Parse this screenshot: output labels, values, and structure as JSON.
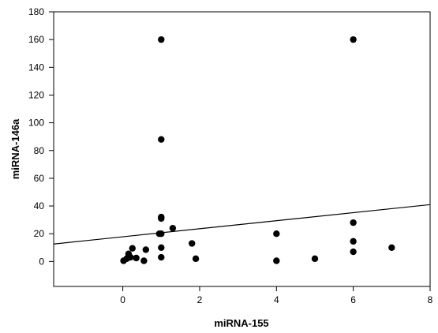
{
  "chart_data": {
    "type": "scatter",
    "title": "",
    "xlabel": "miRNA-155",
    "ylabel": "miRNA-146a",
    "xlim": [
      -1.8,
      8
    ],
    "ylim": [
      -18,
      180
    ],
    "xticks": [
      0,
      2,
      4,
      6,
      8
    ],
    "yticks": [
      0,
      20,
      40,
      60,
      80,
      100,
      120,
      140,
      160,
      180
    ],
    "grid": false,
    "legend": "none",
    "marker_color": "#000000",
    "series": [
      {
        "points": [
          [
            0.02,
            0.5
          ],
          [
            0.1,
            2
          ],
          [
            0.15,
            5.5
          ],
          [
            0.2,
            3
          ],
          [
            0.25,
            9.5
          ],
          [
            0.35,
            2.5
          ],
          [
            0.55,
            0.5
          ],
          [
            0.6,
            8.5
          ],
          [
            0.95,
            20
          ],
          [
            1.0,
            160
          ],
          [
            1.0,
            88
          ],
          [
            1.0,
            32
          ],
          [
            1.0,
            31
          ],
          [
            1.0,
            20
          ],
          [
            1.0,
            10
          ],
          [
            1.0,
            3
          ],
          [
            1.3,
            24
          ],
          [
            1.8,
            13
          ],
          [
            1.9,
            2
          ],
          [
            4.0,
            20
          ],
          [
            4.0,
            0.5
          ],
          [
            5.0,
            2
          ],
          [
            6.0,
            160
          ],
          [
            6.0,
            28
          ],
          [
            6.0,
            14.5
          ],
          [
            6.0,
            7
          ],
          [
            7.0,
            10
          ]
        ]
      }
    ],
    "trendline": {
      "x": [
        -1.8,
        8
      ],
      "y": [
        12.6,
        41
      ]
    }
  }
}
